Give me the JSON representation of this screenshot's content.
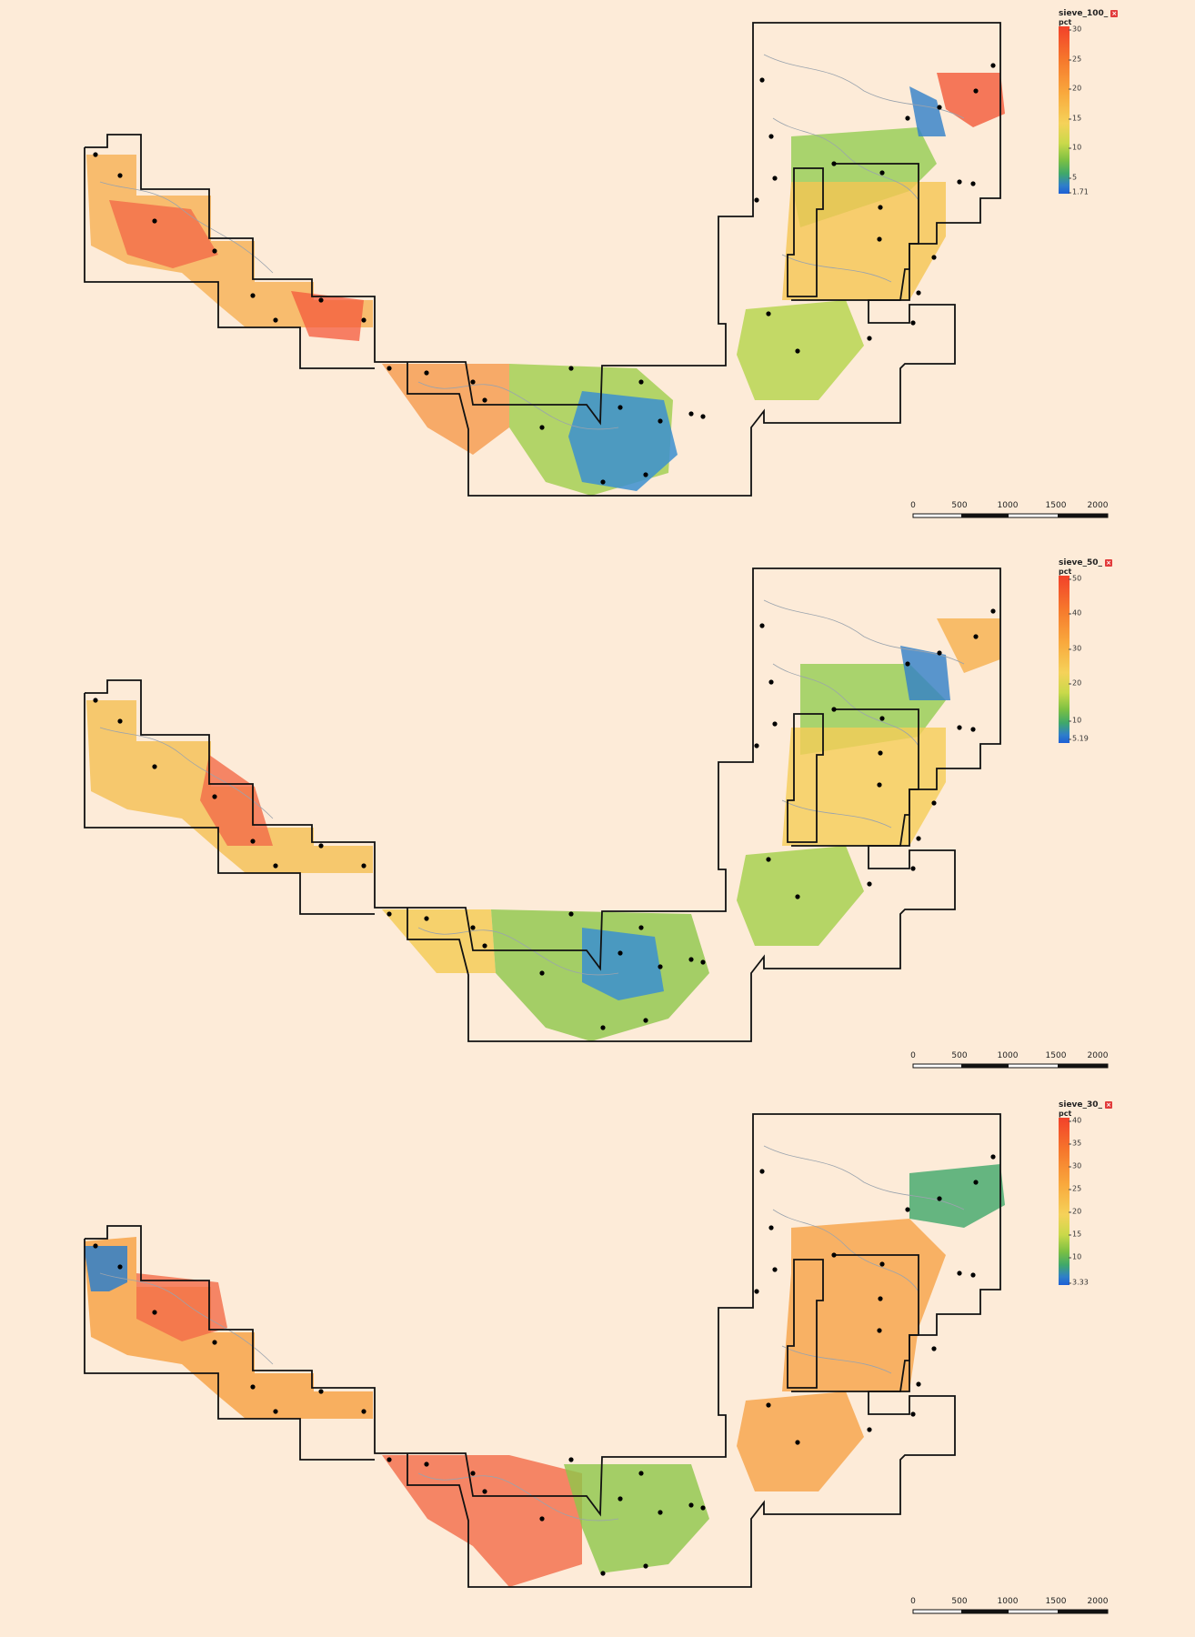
{
  "panels": [
    {
      "legend": {
        "title": "sieve_100_",
        "unit": "pct",
        "ticks": [
          "30",
          "25",
          "20",
          "15",
          "10",
          "5",
          "1.71"
        ],
        "min": 1.71,
        "max": 30
      },
      "scale_labels": [
        "0",
        "500",
        "1000",
        "1500",
        "2000"
      ]
    },
    {
      "legend": {
        "title": "sieve_50_",
        "unit": "pct",
        "ticks": [
          "50",
          "40",
          "30",
          "20",
          "10",
          "5.19"
        ],
        "min": 5.19,
        "max": 50
      },
      "scale_labels": [
        "0",
        "500",
        "1000",
        "1500",
        "2000"
      ]
    },
    {
      "legend": {
        "title": "sieve_30_",
        "unit": "pct",
        "ticks": [
          "40",
          "35",
          "30",
          "25",
          "20",
          "15",
          "10",
          "3.33"
        ],
        "min": 3.33,
        "max": 40
      },
      "scale_labels": [
        "0",
        "500",
        "1000",
        "1500",
        "2000"
      ]
    }
  ],
  "colors": {
    "background": "#fdebd8",
    "boundary": "#111111",
    "contour": "#9aa3ad",
    "high": "#f2412a",
    "mid": "#f5d25a",
    "low": "#1e5fd6"
  },
  "icons": {
    "legend_close": "close-icon"
  }
}
